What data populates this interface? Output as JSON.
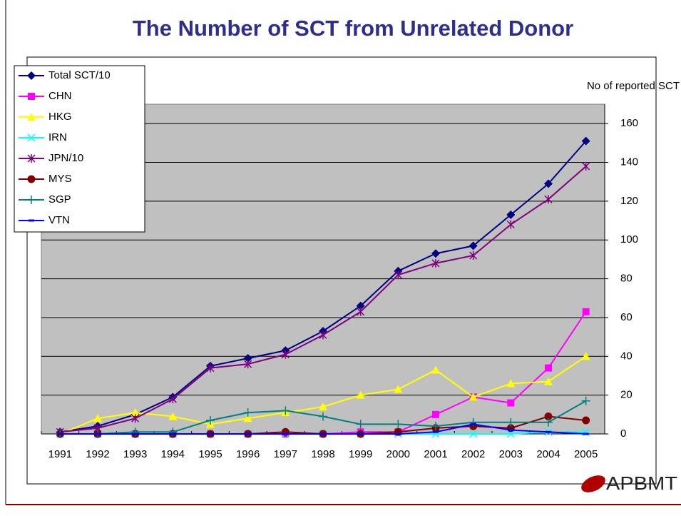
{
  "chart_data": {
    "type": "line",
    "title": "The Number of SCT from Unrelated Donor",
    "y_label": "No of reported SCT",
    "logo": "APBMT",
    "categories": [
      "1991",
      "1992",
      "1993",
      "1994",
      "1995",
      "1996",
      "1997",
      "1998",
      "1999",
      "2000",
      "2001",
      "2002",
      "2003",
      "2004",
      "2005"
    ],
    "ylim": [
      0,
      170
    ],
    "yticks": [
      0,
      20,
      40,
      60,
      80,
      100,
      120,
      140,
      160
    ],
    "grid": true,
    "legend": "upper left",
    "series": [
      {
        "name": "Total SCT/10",
        "color": "#000080",
        "marker": "diamond",
        "values": [
          1,
          4,
          10,
          19,
          35,
          39,
          43,
          53,
          66,
          84,
          93,
          97,
          113,
          129,
          151
        ]
      },
      {
        "name": "CHN",
        "color": "#ff00ff",
        "marker": "square",
        "values": [
          0,
          0,
          0,
          0,
          0,
          0,
          0,
          0,
          1,
          1,
          10,
          19,
          16,
          34,
          63
        ]
      },
      {
        "name": "HKG",
        "color": "#ffff00",
        "marker": "triangle",
        "values": [
          0,
          8,
          11,
          9,
          5,
          8,
          11,
          14,
          20,
          23,
          33,
          19,
          26,
          27,
          40
        ]
      },
      {
        "name": "IRN",
        "color": "#00ffff",
        "marker": "x",
        "values": [
          0,
          0,
          0,
          0,
          0,
          0,
          0,
          0,
          0,
          0,
          0,
          0,
          0,
          1,
          1
        ]
      },
      {
        "name": "JPN/10",
        "color": "#800080",
        "marker": "star",
        "values": [
          1,
          3,
          8,
          18,
          34,
          36,
          41,
          51,
          63,
          82,
          88,
          92,
          108,
          121,
          138
        ]
      },
      {
        "name": "MYS",
        "color": "#800000",
        "marker": "circle",
        "values": [
          0,
          0,
          0,
          0,
          0,
          0,
          1,
          0,
          0,
          1,
          3,
          4,
          3,
          9,
          7
        ]
      },
      {
        "name": "SGP",
        "color": "#008080",
        "marker": "plus",
        "values": [
          0,
          0,
          1,
          1,
          7,
          11,
          12,
          9,
          5,
          5,
          4,
          6,
          6,
          6,
          17
        ]
      },
      {
        "name": "VTN",
        "color": "#0000ff",
        "marker": "dash",
        "values": [
          0,
          0,
          0,
          0,
          0,
          0,
          0,
          0,
          0,
          0,
          1,
          5,
          2,
          1,
          0
        ]
      }
    ]
  }
}
